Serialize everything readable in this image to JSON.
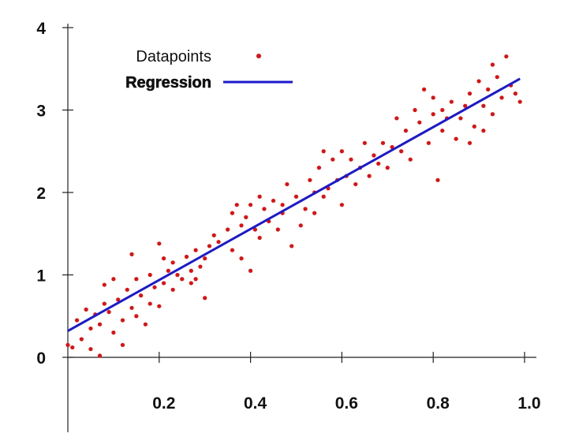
{
  "chart_data": {
    "type": "scatter",
    "xlim": [
      0,
      1.0
    ],
    "ylim": [
      0,
      4
    ],
    "xticks": [
      "0.2",
      "0.4",
      "0.6",
      "0.8",
      "1.0"
    ],
    "yticks": [
      "0",
      "1",
      "2",
      "3",
      "4"
    ],
    "grid": false,
    "legend_position": "top-left",
    "series": [
      {
        "name": "Datapoints",
        "kind": "points",
        "color": "#dd1111",
        "points": [
          [
            0.0,
            0.15
          ],
          [
            0.01,
            0.12
          ],
          [
            0.02,
            0.45
          ],
          [
            0.03,
            0.22
          ],
          [
            0.04,
            0.58
          ],
          [
            0.05,
            0.1
          ],
          [
            0.05,
            0.35
          ],
          [
            0.06,
            0.52
          ],
          [
            0.07,
            0.02
          ],
          [
            0.07,
            0.4
          ],
          [
            0.08,
            0.88
          ],
          [
            0.08,
            0.65
          ],
          [
            0.09,
            0.55
          ],
          [
            0.1,
            0.95
          ],
          [
            0.1,
            0.3
          ],
          [
            0.11,
            0.7
          ],
          [
            0.12,
            0.45
          ],
          [
            0.12,
            0.15
          ],
          [
            0.13,
            0.82
          ],
          [
            0.14,
            1.25
          ],
          [
            0.14,
            0.6
          ],
          [
            0.15,
            0.95
          ],
          [
            0.15,
            0.5
          ],
          [
            0.16,
            0.75
          ],
          [
            0.17,
            0.4
          ],
          [
            0.18,
            1.0
          ],
          [
            0.18,
            0.65
          ],
          [
            0.19,
            0.85
          ],
          [
            0.2,
            1.38
          ],
          [
            0.2,
            0.62
          ],
          [
            0.21,
            1.2
          ],
          [
            0.21,
            0.9
          ],
          [
            0.22,
            1.05
          ],
          [
            0.23,
            0.82
          ],
          [
            0.23,
            1.15
          ],
          [
            0.24,
            1.0
          ],
          [
            0.25,
            0.95
          ],
          [
            0.26,
            1.22
          ],
          [
            0.27,
            0.9
          ],
          [
            0.27,
            1.05
          ],
          [
            0.28,
            1.3
          ],
          [
            0.28,
            0.95
          ],
          [
            0.29,
            1.1
          ],
          [
            0.3,
            1.2
          ],
          [
            0.3,
            0.72
          ],
          [
            0.31,
            1.35
          ],
          [
            0.32,
            1.48
          ],
          [
            0.33,
            1.4
          ],
          [
            0.35,
            1.55
          ],
          [
            0.36,
            1.75
          ],
          [
            0.36,
            1.3
          ],
          [
            0.37,
            1.85
          ],
          [
            0.38,
            1.6
          ],
          [
            0.38,
            1.2
          ],
          [
            0.39,
            1.7
          ],
          [
            0.4,
            1.05
          ],
          [
            0.4,
            1.85
          ],
          [
            0.41,
            1.55
          ],
          [
            0.42,
            1.95
          ],
          [
            0.42,
            1.45
          ],
          [
            0.43,
            1.8
          ],
          [
            0.44,
            1.65
          ],
          [
            0.45,
            1.9
          ],
          [
            0.46,
            1.55
          ],
          [
            0.47,
            1.85
          ],
          [
            0.47,
            1.75
          ],
          [
            0.48,
            2.1
          ],
          [
            0.49,
            1.35
          ],
          [
            0.5,
            1.95
          ],
          [
            0.51,
            1.6
          ],
          [
            0.52,
            1.8
          ],
          [
            0.53,
            2.15
          ],
          [
            0.54,
            2.0
          ],
          [
            0.54,
            1.75
          ],
          [
            0.55,
            2.3
          ],
          [
            0.56,
            1.95
          ],
          [
            0.56,
            2.5
          ],
          [
            0.57,
            2.05
          ],
          [
            0.58,
            2.4
          ],
          [
            0.59,
            2.15
          ],
          [
            0.6,
            1.85
          ],
          [
            0.6,
            2.5
          ],
          [
            0.61,
            2.2
          ],
          [
            0.62,
            2.4
          ],
          [
            0.63,
            2.1
          ],
          [
            0.64,
            2.3
          ],
          [
            0.65,
            2.6
          ],
          [
            0.66,
            2.2
          ],
          [
            0.67,
            2.45
          ],
          [
            0.68,
            2.35
          ],
          [
            0.69,
            2.6
          ],
          [
            0.7,
            2.3
          ],
          [
            0.71,
            2.55
          ],
          [
            0.72,
            2.9
          ],
          [
            0.73,
            2.5
          ],
          [
            0.74,
            2.75
          ],
          [
            0.75,
            2.4
          ],
          [
            0.76,
            3.0
          ],
          [
            0.77,
            2.85
          ],
          [
            0.78,
            3.25
          ],
          [
            0.79,
            2.6
          ],
          [
            0.8,
            2.95
          ],
          [
            0.8,
            3.15
          ],
          [
            0.81,
            2.15
          ],
          [
            0.82,
            2.75
          ],
          [
            0.82,
            3.0
          ],
          [
            0.83,
            2.9
          ],
          [
            0.84,
            3.1
          ],
          [
            0.85,
            2.65
          ],
          [
            0.86,
            2.9
          ],
          [
            0.87,
            3.05
          ],
          [
            0.88,
            2.6
          ],
          [
            0.88,
            3.2
          ],
          [
            0.89,
            2.8
          ],
          [
            0.9,
            3.35
          ],
          [
            0.91,
            2.75
          ],
          [
            0.91,
            3.05
          ],
          [
            0.92,
            3.25
          ],
          [
            0.93,
            3.55
          ],
          [
            0.93,
            2.95
          ],
          [
            0.94,
            3.4
          ],
          [
            0.95,
            3.15
          ],
          [
            0.96,
            3.65
          ],
          [
            0.97,
            3.3
          ],
          [
            0.98,
            3.2
          ],
          [
            0.99,
            3.1
          ]
        ]
      },
      {
        "name": "Regression",
        "kind": "line",
        "color": "#1a1acc",
        "line": [
          [
            0.0,
            0.32
          ],
          [
            0.99,
            3.38
          ]
        ]
      }
    ]
  }
}
